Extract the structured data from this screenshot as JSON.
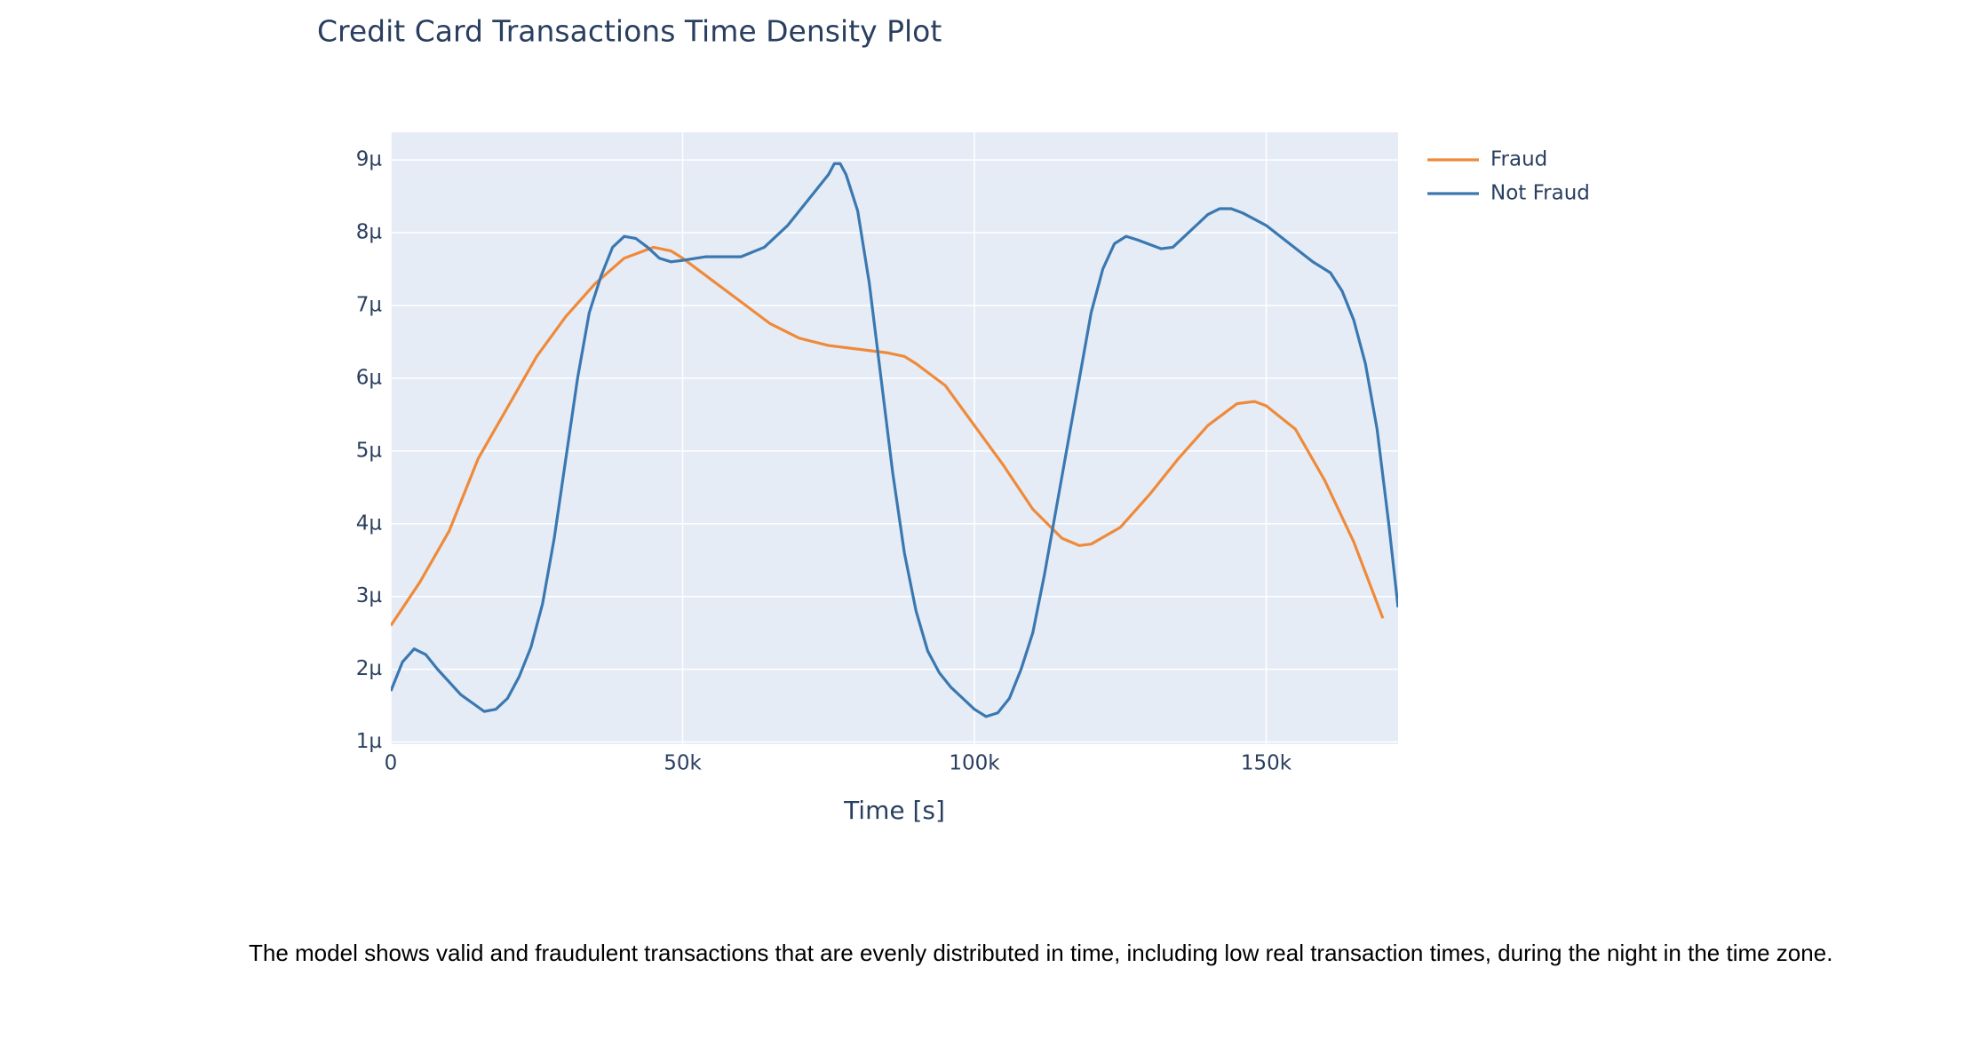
{
  "chart_data": {
    "type": "line",
    "title": "Credit Card Transactions Time Density Plot",
    "x_label": "Time [s]",
    "xlim": [
      0,
      172600
    ],
    "ylim": [
      9.7e-07,
      9.38e-06
    ],
    "xticks": [
      0,
      {
        "value": 50000,
        "label": "50k"
      },
      {
        "value": 100000,
        "label": "100k"
      },
      {
        "value": 150000,
        "label": "150k"
      }
    ],
    "yticks": [
      {
        "value": 1e-06,
        "label": "1µ"
      },
      {
        "value": 2e-06,
        "label": "2µ"
      },
      {
        "value": 3e-06,
        "label": "3µ"
      },
      {
        "value": 4e-06,
        "label": "4µ"
      },
      {
        "value": 5e-06,
        "label": "5µ"
      },
      {
        "value": 6e-06,
        "label": "6µ"
      },
      {
        "value": 7e-06,
        "label": "7µ"
      },
      {
        "value": 8e-06,
        "label": "8µ"
      },
      {
        "value": 9e-06,
        "label": "9µ"
      }
    ],
    "grid": true,
    "legend": "right",
    "series": [
      {
        "name": "Fraud",
        "color": "#ef8a3a",
        "x": [
          0,
          5000,
          10000,
          15000,
          20000,
          25000,
          30000,
          35000,
          40000,
          45000,
          48000,
          50000,
          55000,
          60000,
          65000,
          70000,
          75000,
          80000,
          85000,
          88000,
          90000,
          95000,
          100000,
          105000,
          110000,
          115000,
          118000,
          120000,
          125000,
          130000,
          135000,
          140000,
          145000,
          148000,
          150000,
          155000,
          160000,
          165000,
          170000
        ],
        "values": [
          2.6e-06,
          3.2e-06,
          3.9e-06,
          4.9e-06,
          5.6e-06,
          6.3e-06,
          6.85e-06,
          7.3e-06,
          7.65e-06,
          7.8e-06,
          7.75e-06,
          7.65e-06,
          7.35e-06,
          7.05e-06,
          6.75e-06,
          6.55e-06,
          6.45e-06,
          6.4e-06,
          6.35e-06,
          6.3e-06,
          6.2e-06,
          5.9e-06,
          5.35e-06,
          4.8e-06,
          4.2e-06,
          3.8e-06,
          3.7e-06,
          3.72e-06,
          3.95e-06,
          4.4e-06,
          4.9e-06,
          5.35e-06,
          5.65e-06,
          5.68e-06,
          5.62e-06,
          5.3e-06,
          4.6e-06,
          3.75e-06,
          2.7e-06
        ]
      },
      {
        "name": "Not Fraud",
        "color": "#3a78b1",
        "x": [
          0,
          2000,
          4000,
          6000,
          8000,
          12000,
          16000,
          18000,
          20000,
          22000,
          24000,
          26000,
          28000,
          30000,
          32000,
          34000,
          36000,
          38000,
          40000,
          42000,
          44000,
          46000,
          48000,
          50000,
          54000,
          60000,
          64000,
          68000,
          72000,
          75000,
          76000,
          77000,
          78000,
          80000,
          82000,
          84000,
          86000,
          88000,
          90000,
          92000,
          94000,
          96000,
          98000,
          100000,
          102000,
          104000,
          106000,
          108000,
          110000,
          112000,
          114000,
          116000,
          118000,
          120000,
          122000,
          124000,
          126000,
          128000,
          132000,
          134000,
          136000,
          138000,
          140000,
          142000,
          144000,
          146000,
          150000,
          154000,
          158000,
          161000,
          163000,
          165000,
          167000,
          169000,
          171000,
          172600
        ],
        "values": [
          1.7e-06,
          2.1e-06,
          2.28e-06,
          2.2e-06,
          2e-06,
          1.65e-06,
          1.42e-06,
          1.45e-06,
          1.6e-06,
          1.9e-06,
          2.3e-06,
          2.9e-06,
          3.8e-06,
          4.9e-06,
          6e-06,
          6.9e-06,
          7.4e-06,
          7.8e-06,
          7.95e-06,
          7.92e-06,
          7.8e-06,
          7.65e-06,
          7.6e-06,
          7.62e-06,
          7.67e-06,
          7.67e-06,
          7.8e-06,
          8.1e-06,
          8.5e-06,
          8.8e-06,
          8.95e-06,
          8.95e-06,
          8.8e-06,
          8.3e-06,
          7.3e-06,
          6e-06,
          4.7e-06,
          3.6e-06,
          2.8e-06,
          2.25e-06,
          1.95e-06,
          1.75e-06,
          1.6e-06,
          1.45e-06,
          1.35e-06,
          1.4e-06,
          1.6e-06,
          2e-06,
          2.5e-06,
          3.3e-06,
          4.2e-06,
          5.1e-06,
          6e-06,
          6.9e-06,
          7.5e-06,
          7.85e-06,
          7.95e-06,
          7.9e-06,
          7.78e-06,
          7.8e-06,
          7.95e-06,
          8.1e-06,
          8.25e-06,
          8.33e-06,
          8.33e-06,
          8.27e-06,
          8.1e-06,
          7.85e-06,
          7.6e-06,
          7.45e-06,
          7.2e-06,
          6.8e-06,
          6.2e-06,
          5.3e-06,
          4e-06,
          2.85e-06
        ]
      }
    ]
  },
  "description": "The model shows valid and fraudulent transactions that are evenly distributed in time, including low real transaction times, during the night in the time zone."
}
